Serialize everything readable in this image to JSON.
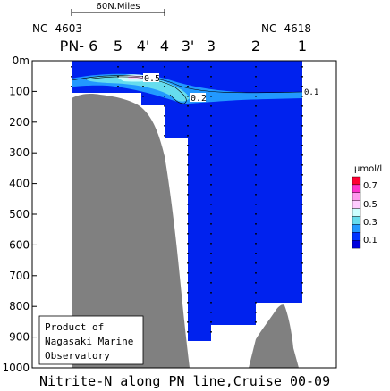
{
  "chart_data": {
    "type": "contour-section",
    "title": "Nitrite-N along PN line,Cruise 00-09",
    "scale_label": "60N.Miles",
    "station_left_label": "NC- 4603",
    "station_right_label": "NC- 4618",
    "stations": [
      "PN- 6",
      "5",
      "4'",
      "4",
      "3'",
      "3",
      "2",
      "1"
    ],
    "y_axis": {
      "unit": "m",
      "ticks": [
        0,
        100,
        200,
        300,
        400,
        500,
        600,
        700,
        800,
        900,
        1000
      ],
      "ylim": [
        0,
        1000
      ],
      "inverted": true
    },
    "contour_labels": [
      "0.5",
      "0.2",
      "0.1"
    ],
    "colorbar": {
      "unit": "μmol/l",
      "tick_labels": [
        "0.7",
        "0.5",
        "0.3",
        "0.1"
      ],
      "colors": [
        "#ff0033",
        "#ff33cc",
        "#ff99ee",
        "#ffccff",
        "#ccffff",
        "#66ddee",
        "#2299ff",
        "#0033ff",
        "#0000dd"
      ]
    },
    "colors": {
      "sea": "#0022ee",
      "land": "#808080"
    },
    "credit": [
      "Product of",
      "Nagasaki Marine",
      "Observatory"
    ]
  }
}
